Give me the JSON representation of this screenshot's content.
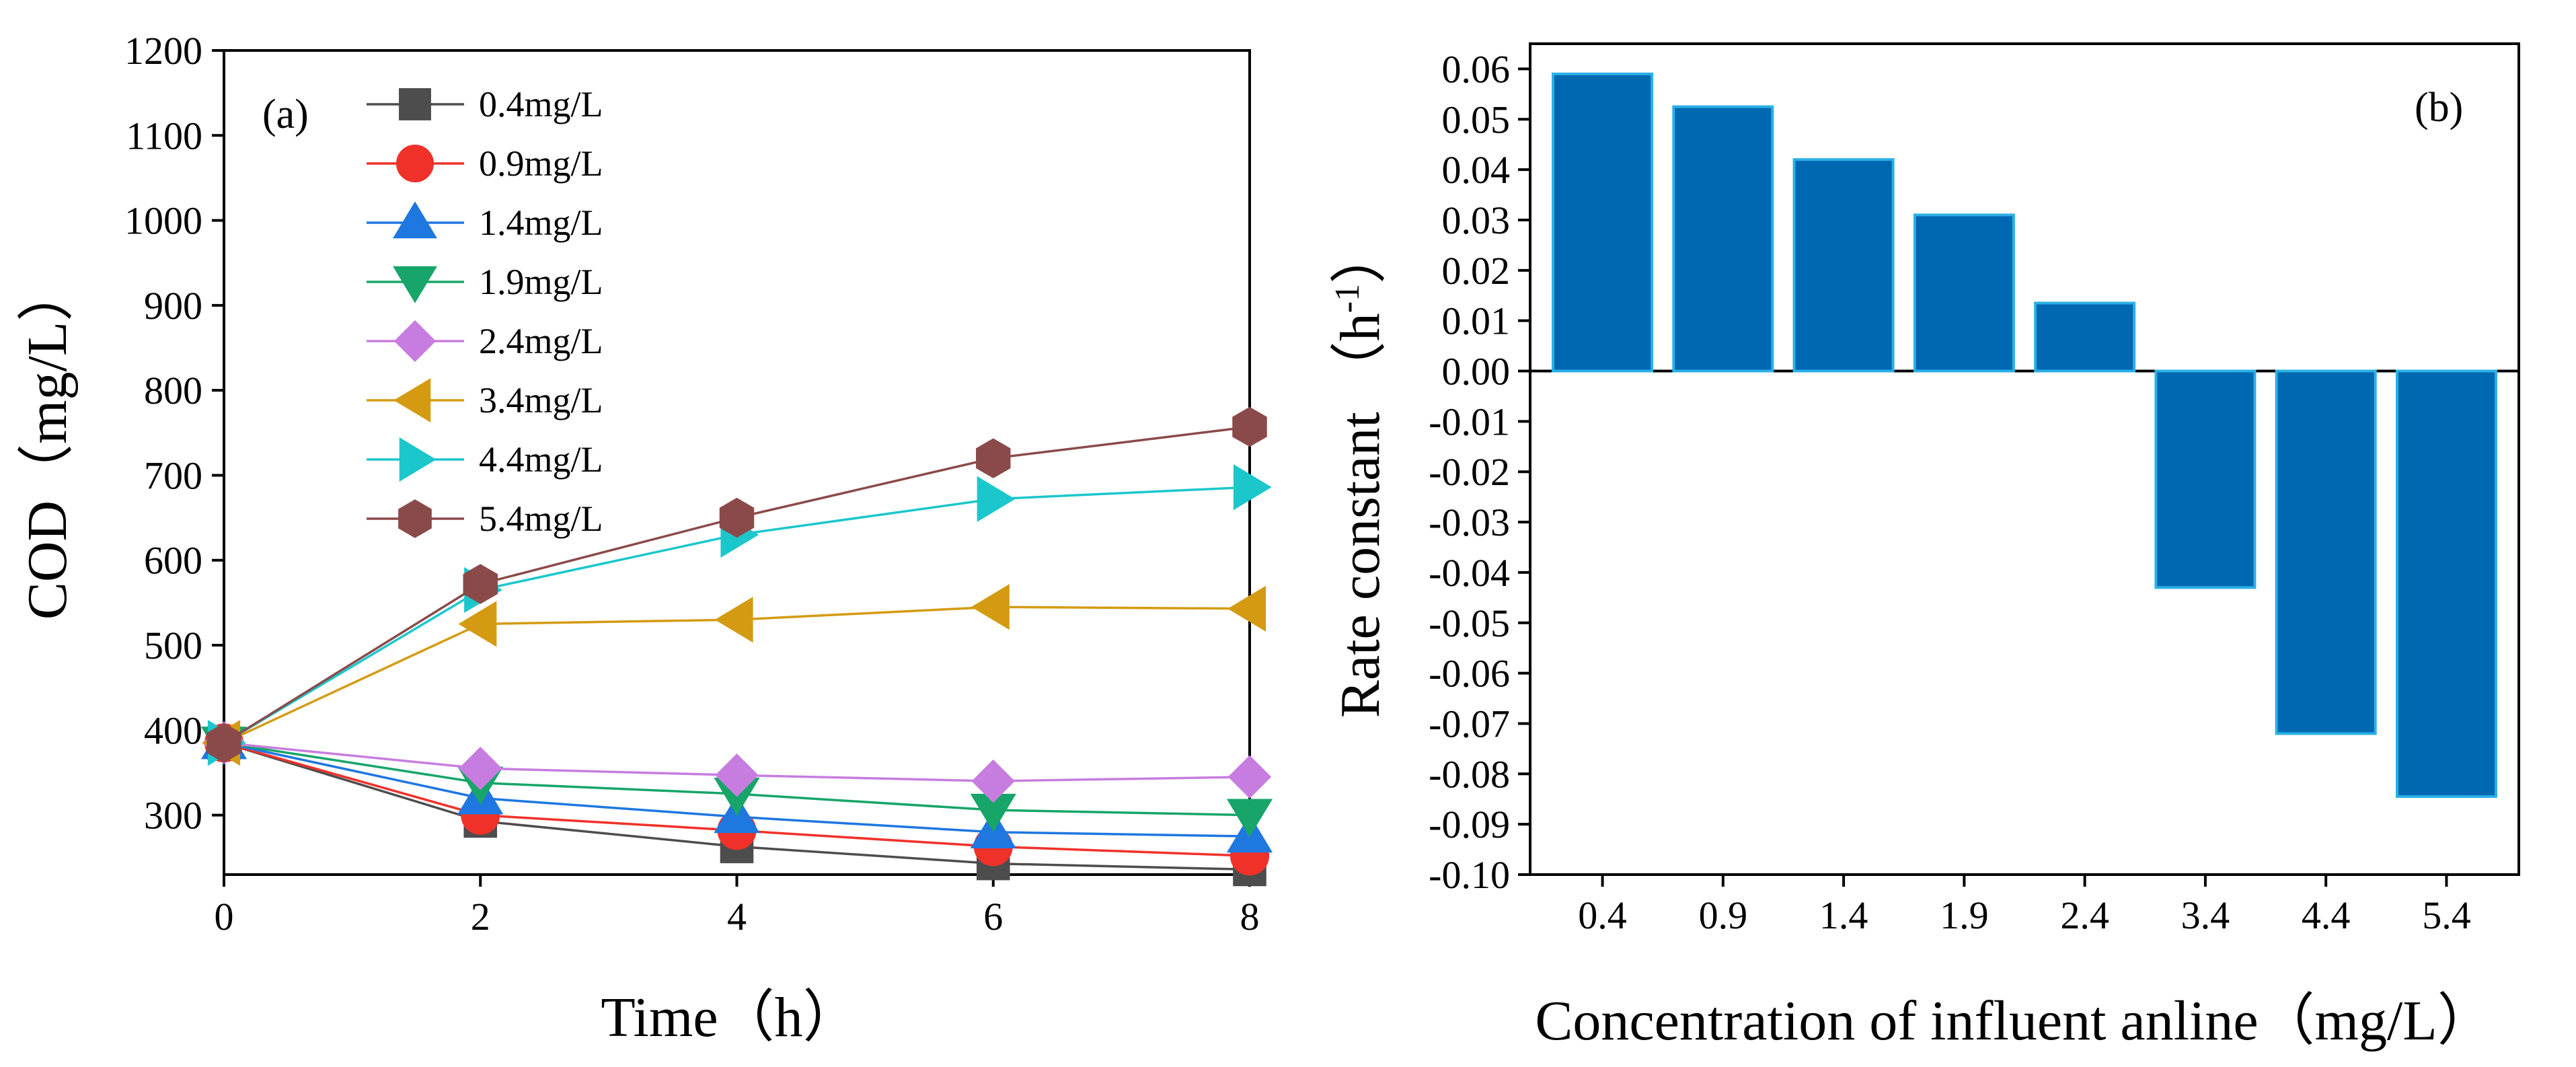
{
  "chart_data": [
    {
      "type": "line",
      "panel_label": "(a)",
      "xlabel": "Time（h）",
      "ylabel": "COD（mg/L）",
      "xlim": [
        0,
        8
      ],
      "ylim": [
        230,
        1200
      ],
      "xticks": [
        0,
        2,
        4,
        6,
        8
      ],
      "yticks": [
        300,
        400,
        500,
        600,
        700,
        800,
        900,
        1000,
        1100,
        1200
      ],
      "x": [
        0,
        2,
        4,
        6,
        8
      ],
      "legend_position": "top-left",
      "series": [
        {
          "name": "0.4mg/L",
          "color": "#4d4d4d",
          "marker": "square",
          "values": [
            385,
            293,
            263,
            243,
            236
          ]
        },
        {
          "name": "0.9mg/L",
          "color": "#f0312a",
          "marker": "circle",
          "values": [
            385,
            300,
            282,
            263,
            252
          ]
        },
        {
          "name": "1.4mg/L",
          "color": "#1f77e0",
          "marker": "triangle-up",
          "values": [
            385,
            320,
            298,
            280,
            275
          ]
        },
        {
          "name": "1.9mg/L",
          "color": "#17a569",
          "marker": "triangle-down",
          "values": [
            385,
            338,
            325,
            306,
            300
          ]
        },
        {
          "name": "2.4mg/L",
          "color": "#c77ddf",
          "marker": "diamond",
          "values": [
            385,
            355,
            347,
            340,
            345
          ]
        },
        {
          "name": "3.4mg/L",
          "color": "#d49b12",
          "marker": "triangle-left",
          "values": [
            385,
            525,
            530,
            545,
            543
          ]
        },
        {
          "name": "4.4mg/L",
          "color": "#1cc7cc",
          "marker": "triangle-right",
          "values": [
            385,
            565,
            630,
            672,
            686
          ]
        },
        {
          "name": "5.4mg/L",
          "color": "#8b4a4a",
          "marker": "hexagon",
          "values": [
            385,
            572,
            650,
            720,
            757
          ]
        }
      ]
    },
    {
      "type": "bar",
      "panel_label": "(b)",
      "xlabel": "Concentration of influent anline（mg/L）",
      "ylabel": "Rate constant （h",
      "ylabel_sup": "-1",
      "ylabel_suffix": "）",
      "ylim": [
        -0.1,
        0.065
      ],
      "yticks": [
        "0.06",
        "0.05",
        "0.04",
        "0.03",
        "0.02",
        "0.01",
        "0.00",
        "-0.01",
        "-0.02",
        "-0.03",
        "-0.04",
        "-0.05",
        "-0.06",
        "-0.07",
        "-0.08",
        "-0.09",
        "-0.10"
      ],
      "categories": [
        "0.4",
        "0.9",
        "1.4",
        "1.9",
        "2.4",
        "3.4",
        "4.4",
        "5.4"
      ],
      "values": [
        0.059,
        0.0525,
        0.042,
        0.031,
        0.0135,
        -0.043,
        -0.072,
        -0.0845
      ],
      "bar_color": "#0067b1",
      "bar_edge_color": "#2ab0e6"
    }
  ]
}
